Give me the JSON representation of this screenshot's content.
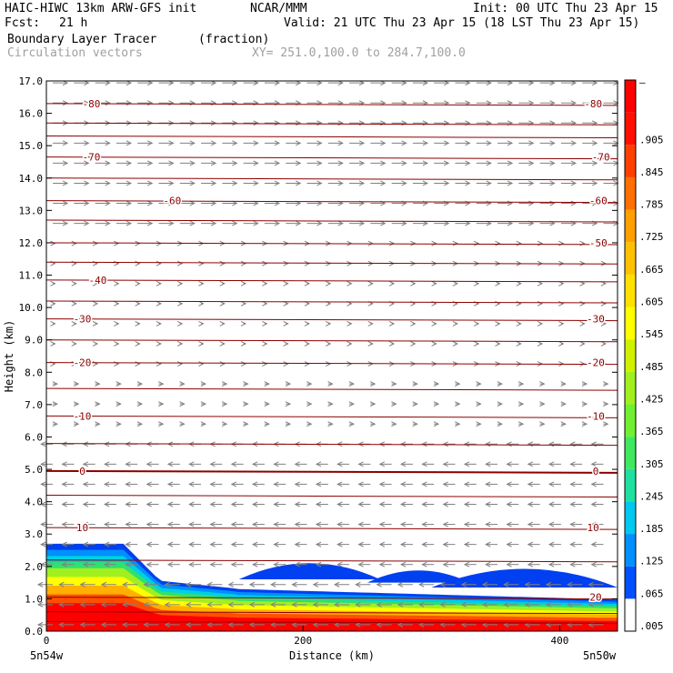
{
  "header": {
    "model": "HAIC-HIWC 13km ARW-GFS init",
    "center": "NCAR/MMM",
    "init": "Init: 00 UTC Thu 23 Apr 15",
    "fcst_label": "Fcst:",
    "fcst_value": "21 h",
    "valid": "Valid: 21 UTC Thu 23 Apr 15 (18 LST Thu 23 Apr 15)",
    "field": "Boundary Layer Tracer",
    "field_units": "(fraction)",
    "overlay": "Circulation vectors",
    "xy_range": "XY= 251.0,100.0 to 284.7,100.0"
  },
  "chart_data": {
    "type": "heatmap",
    "title": "Boundary Layer Tracer",
    "xlabel": "Distance (km)",
    "ylabel": "Height (km)",
    "xlim": [
      0,
      445
    ],
    "ylim": [
      0,
      17
    ],
    "x_ticks": [
      0,
      200,
      400
    ],
    "y_ticks": [
      0.0,
      1.0,
      2.0,
      3.0,
      4.0,
      5.0,
      6.0,
      7.0,
      8.0,
      9.0,
      10.0,
      11.0,
      12.0,
      13.0,
      14.0,
      15.0,
      16.0,
      17.0
    ],
    "x_end_labels": [
      "5n54w",
      "5n50w"
    ],
    "colorbar_labels": [
      ".005",
      ".065",
      ".125",
      ".185",
      ".245",
      ".305",
      ".365",
      ".425",
      ".485",
      ".545",
      ".605",
      ".665",
      ".725",
      ".785",
      ".845",
      ".905",
      "–"
    ],
    "colorbar_colors": [
      "#ffffff",
      "#0050ff",
      "#0090ff",
      "#00c8f0",
      "#20e0a0",
      "#40e860",
      "#70f030",
      "#a0f020",
      "#d0f000",
      "#ffff00",
      "#ffe000",
      "#ffc000",
      "#ffa000",
      "#ff7000",
      "#ff4000",
      "#ff1000",
      "#ff0000"
    ],
    "isotherms": [
      {
        "label": "-80",
        "height_km": 16.3,
        "label_x_km": [
          35,
          426
        ]
      },
      {
        "label": "-70",
        "height_km": 14.65,
        "label_x_km": [
          35,
          432
        ]
      },
      {
        "label": "-60",
        "height_km": 13.3,
        "label_x_km": [
          98,
          430
        ]
      },
      {
        "label": "-50",
        "height_km": 12.0,
        "label_x_km": [
          430
        ]
      },
      {
        "label": "-40",
        "height_km": 10.85,
        "label_x_km": [
          40
        ]
      },
      {
        "label": "-30",
        "height_km": 9.65,
        "label_x_km": [
          28,
          428
        ]
      },
      {
        "label": "-20",
        "height_km": 8.3,
        "label_x_km": [
          28,
          428
        ]
      },
      {
        "label": "-10",
        "height_km": 6.65,
        "label_x_km": [
          28,
          428
        ]
      },
      {
        "label": "0",
        "height_km": 4.95,
        "label_x_km": [
          28,
          428
        ]
      },
      {
        "label": "10",
        "height_km": 3.2,
        "label_x_km": [
          28,
          426
        ]
      },
      {
        "label": "20",
        "height_km": 1.05,
        "label_x_km": [
          428
        ]
      }
    ],
    "extra_isotherm_heights_km": [
      14.0,
      15.3,
      15.7,
      12.7,
      11.4,
      10.2,
      9.0,
      7.5,
      5.8,
      4.2,
      2.2,
      0.6,
      0.3
    ]
  }
}
